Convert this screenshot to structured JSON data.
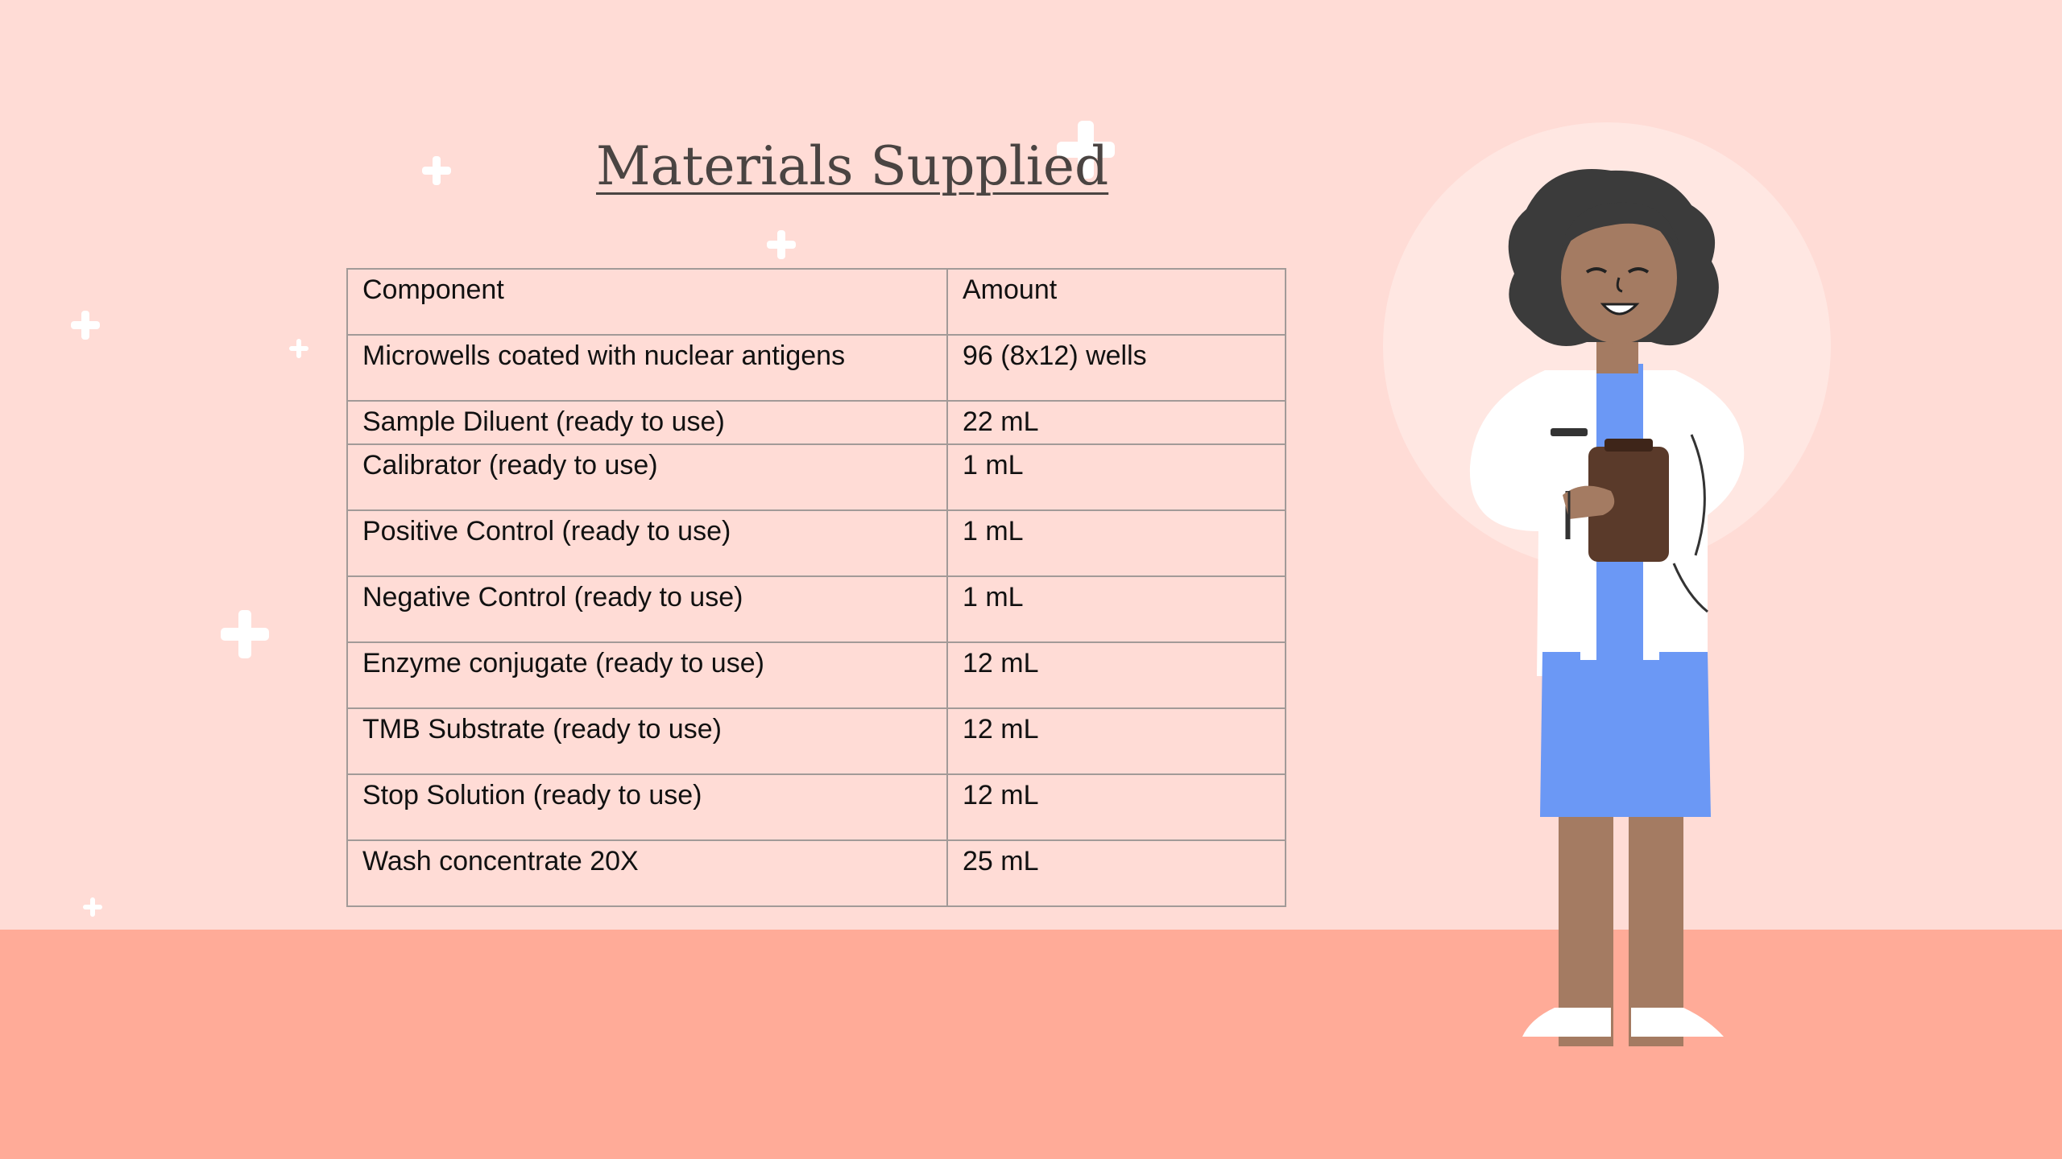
{
  "slide": {
    "title": "Materials Supplied"
  },
  "table": {
    "headers": [
      "Component",
      "Amount"
    ],
    "rows": [
      [
        "Microwells coated with nuclear antigens",
        "96 (8x12) wells"
      ],
      [
        "Sample Diluent (ready to use)",
        "22 mL"
      ],
      [
        "Calibrator (ready to use)",
        "1 mL"
      ],
      [
        "Positive Control (ready to use)",
        "1 mL"
      ],
      [
        "Negative Control (ready to use)",
        "1 mL"
      ],
      [
        "Enzyme conjugate (ready to use)",
        "12 mL"
      ],
      [
        "TMB Substrate (ready to use)",
        "12 mL"
      ],
      [
        "Stop Solution (ready to use)",
        "12 mL"
      ],
      [
        "Wash concentrate 20X",
        "25 mL"
      ]
    ]
  },
  "colors": {
    "background": "#ffdcd6",
    "floor": "#ffab98",
    "title": "#4a4442",
    "table_border": "#a29a98",
    "dress": "#6b98f5",
    "coat": "#ffffff",
    "skin": "#a47b62",
    "hair": "#3b3b3b",
    "clipboard": "#5a3a2a"
  },
  "decorations": {
    "sparkle_icon": "plus-sparkle-icon",
    "illustration": "scientist-woman-illustration"
  }
}
